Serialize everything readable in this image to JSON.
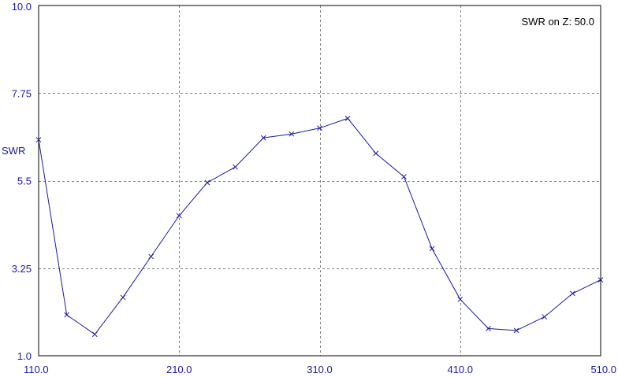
{
  "chart_data": {
    "type": "line",
    "title": "",
    "xlabel": "",
    "ylabel": "SWR",
    "legend_text": "SWR on Z: 50.0",
    "legend_position": "top-right",
    "grid": true,
    "xlim": [
      110.0,
      510.0
    ],
    "ylim": [
      1.0,
      10.0
    ],
    "x_ticks": [
      "110.0",
      "210.0",
      "310.0",
      "410.0",
      "510.0"
    ],
    "x_tick_values": [
      110,
      210,
      310,
      410,
      510
    ],
    "y_ticks": [
      "10.0",
      "7.75",
      "5.5",
      "3.25",
      "1.0"
    ],
    "y_tick_values": [
      10.0,
      7.75,
      5.5,
      3.25,
      1.0
    ],
    "colors": {
      "series": "#1a1aa6",
      "axis_text": "#1a1aa6",
      "legend_text": "#000000",
      "grid": "#808080",
      "frame": "#000000",
      "background": "#ffffff"
    },
    "series": [
      {
        "x": [
          110,
          130,
          150,
          170,
          190,
          210,
          230,
          250,
          270,
          290,
          310,
          330,
          350,
          370,
          390,
          410,
          430,
          450,
          470,
          490,
          510
        ],
        "y": [
          6.55,
          2.05,
          1.55,
          2.5,
          3.55,
          4.6,
          5.45,
          5.85,
          6.6,
          6.7,
          6.85,
          7.1,
          6.2,
          5.6,
          3.75,
          2.45,
          1.7,
          1.65,
          2.0,
          2.6,
          2.95
        ]
      }
    ]
  }
}
